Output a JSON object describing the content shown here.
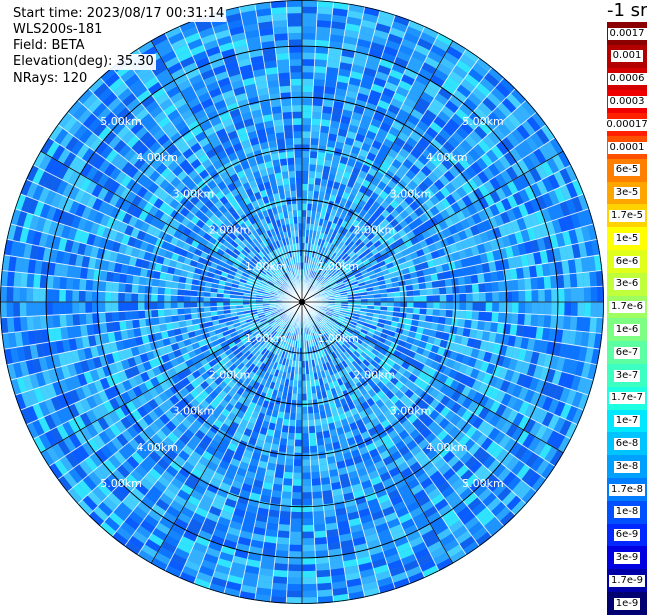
{
  "info": {
    "start_time": "Start time: 2023/08/17 00:31:14",
    "instrument": "WLS200s-181",
    "field": "Field: BETA",
    "elevation": "Elevation(deg): 35.30",
    "nrays": "NRays: 120"
  },
  "colorbar": {
    "title": "-1 sr",
    "entries": [
      {
        "label": "0.0017",
        "color": "#8b0000"
      },
      {
        "label": "0.001",
        "color": "#b20000"
      },
      {
        "label": "0.0006",
        "color": "#d40000"
      },
      {
        "label": "0.0003",
        "color": "#f00000"
      },
      {
        "label": "0.00017",
        "color": "#ff2000"
      },
      {
        "label": "0.0001",
        "color": "#ff5000"
      },
      {
        "label": "6e-5",
        "color": "#ff7f00"
      },
      {
        "label": "3e-5",
        "color": "#ffa500"
      },
      {
        "label": "1.7e-5",
        "color": "#ffd200"
      },
      {
        "label": "1e-5",
        "color": "#ffff00"
      },
      {
        "label": "6e-6",
        "color": "#e0ff1a"
      },
      {
        "label": "3e-6",
        "color": "#c0ff3c"
      },
      {
        "label": "1.7e-6",
        "color": "#9eff60"
      },
      {
        "label": "1e-6",
        "color": "#7cff82"
      },
      {
        "label": "6e-7",
        "color": "#5cffa2"
      },
      {
        "label": "3e-7",
        "color": "#3cffc2"
      },
      {
        "label": "1.7e-7",
        "color": "#1cffe0"
      },
      {
        "label": "1e-7",
        "color": "#00e8ff"
      },
      {
        "label": "6e-8",
        "color": "#00c4ff"
      },
      {
        "label": "3e-8",
        "color": "#00a0ff"
      },
      {
        "label": "1.7e-8",
        "color": "#007cff"
      },
      {
        "label": "1e-8",
        "color": "#0050ff"
      },
      {
        "label": "6e-9",
        "color": "#0028ff"
      },
      {
        "label": "3e-9",
        "color": "#0000e0"
      },
      {
        "label": "1.7e-9",
        "color": "#0000a8"
      },
      {
        "label": "1e-9",
        "color": "#000070"
      }
    ]
  },
  "chart_data": {
    "type": "heatmap",
    "projection": "polar-ppi",
    "rays": 120,
    "range_unit": "km",
    "range_max": 5.9,
    "range_ticks": [
      1,
      2,
      3,
      4,
      5
    ],
    "range_tick_labels": [
      "1.00km",
      "2.00km",
      "3.00km",
      "4.00km",
      "5.00km"
    ],
    "azimuth_spokes_deg": [
      0,
      30,
      60,
      90,
      120,
      150,
      180,
      210,
      240,
      270,
      300,
      330
    ],
    "label_bearings_deg": [
      -45,
      45,
      135,
      225
    ],
    "dominant_value": "1e-7",
    "value_range": [
      "1e-9",
      "0.0017"
    ]
  }
}
